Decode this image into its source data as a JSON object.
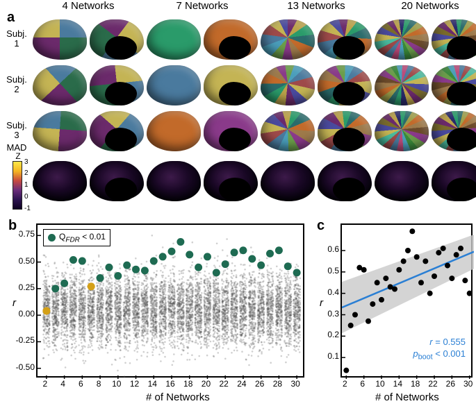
{
  "panel_a": {
    "letter": "a",
    "col_headers": [
      "4 Networks",
      "7 Networks",
      "13 Networks",
      "20 Networks"
    ],
    "row_labels": [
      "Subj.\n1",
      "Subj.\n2",
      "Subj.\n3",
      "MAD"
    ],
    "colorbar": {
      "title": "Z",
      "ticks": [
        "-1",
        "0",
        "1",
        "2",
        "3"
      ]
    },
    "brain_palettes": {
      "n4": [
        "#4a7a9e",
        "#c4b454",
        "#6b2a6b",
        "#2a6b4a"
      ],
      "n7": [
        "#4a7a9e",
        "#c4b454",
        "#6b2a6b",
        "#2a9b6a",
        "#c26a2a",
        "#8a3a8a",
        "#4a9ebb"
      ],
      "n13": [
        "#4a7a9e",
        "#c4b454",
        "#6b2a6b",
        "#2a9b6a",
        "#c26a2a",
        "#8a3a8a",
        "#4a9ebb",
        "#9e4a4a",
        "#4a4a9e",
        "#bba24a",
        "#2a6b6b",
        "#9e7a4a",
        "#6b9e4a"
      ],
      "n20": [
        "#4a7a9e",
        "#c4b454",
        "#6b2a6b",
        "#2a9b6a",
        "#c26a2a",
        "#8a3a8a",
        "#4a9ebb",
        "#9e4a4a",
        "#4a4a9e",
        "#bba24a",
        "#2a6b6b",
        "#9e7a4a",
        "#6b9e4a",
        "#bb4a7a",
        "#4abb9e",
        "#7a6b2a",
        "#2a2a6b",
        "#9e9e4a",
        "#6b4a2a",
        "#3a8a3a"
      ]
    }
  },
  "panel_b": {
    "letter": "b",
    "xlabel": "# of Networks",
    "ylabel": "r",
    "xlim": [
      1,
      31
    ],
    "ylim": [
      -0.6,
      0.85
    ],
    "xticks": [
      2,
      4,
      6,
      8,
      10,
      12,
      14,
      16,
      18,
      20,
      22,
      24,
      26,
      28,
      30
    ],
    "yticks": [
      -0.5,
      -0.25,
      0.0,
      0.25,
      0.5,
      0.75
    ],
    "legend": {
      "label_html": "Q<sub><i>FDR</i></sub> < 0.01",
      "marker_color": "#1e6b52",
      "marker_size": 11
    },
    "sig_points": [
      {
        "x": 2,
        "y": 0.04,
        "c": "#d4a017"
      },
      {
        "x": 3,
        "y": 0.25,
        "c": "#1e6b52"
      },
      {
        "x": 4,
        "y": 0.3,
        "c": "#1e6b52"
      },
      {
        "x": 5,
        "y": 0.52,
        "c": "#1e6b52"
      },
      {
        "x": 6,
        "y": 0.51,
        "c": "#1e6b52"
      },
      {
        "x": 7,
        "y": 0.27,
        "c": "#d4a017"
      },
      {
        "x": 8,
        "y": 0.35,
        "c": "#1e6b52"
      },
      {
        "x": 9,
        "y": 0.45,
        "c": "#1e6b52"
      },
      {
        "x": 10,
        "y": 0.37,
        "c": "#1e6b52"
      },
      {
        "x": 11,
        "y": 0.47,
        "c": "#1e6b52"
      },
      {
        "x": 12,
        "y": 0.43,
        "c": "#1e6b52"
      },
      {
        "x": 13,
        "y": 0.42,
        "c": "#1e6b52"
      },
      {
        "x": 14,
        "y": 0.51,
        "c": "#1e6b52"
      },
      {
        "x": 15,
        "y": 0.55,
        "c": "#1e6b52"
      },
      {
        "x": 16,
        "y": 0.6,
        "c": "#1e6b52"
      },
      {
        "x": 17,
        "y": 0.69,
        "c": "#1e6b52"
      },
      {
        "x": 18,
        "y": 0.57,
        "c": "#1e6b52"
      },
      {
        "x": 19,
        "y": 0.45,
        "c": "#1e6b52"
      },
      {
        "x": 20,
        "y": 0.55,
        "c": "#1e6b52"
      },
      {
        "x": 21,
        "y": 0.4,
        "c": "#1e6b52"
      },
      {
        "x": 22,
        "y": 0.48,
        "c": "#1e6b52"
      },
      {
        "x": 23,
        "y": 0.59,
        "c": "#1e6b52"
      },
      {
        "x": 24,
        "y": 0.61,
        "c": "#1e6b52"
      },
      {
        "x": 25,
        "y": 0.53,
        "c": "#1e6b52"
      },
      {
        "x": 26,
        "y": 0.47,
        "c": "#1e6b52"
      },
      {
        "x": 27,
        "y": 0.58,
        "c": "#1e6b52"
      },
      {
        "x": 28,
        "y": 0.61,
        "c": "#1e6b52"
      },
      {
        "x": 29,
        "y": 0.46,
        "c": "#1e6b52"
      },
      {
        "x": 30,
        "y": 0.4,
        "c": "#1e6b52"
      }
    ],
    "jitter": {
      "n_per_x": 300,
      "color": "#555555",
      "size": 1.3,
      "alpha": 0.28,
      "spread": 0.38,
      "y_sd": 0.17,
      "y_mean": 0.05
    }
  },
  "panel_c": {
    "letter": "c",
    "xlabel": "# of Networks",
    "ylabel": "r",
    "xlim": [
      1,
      31
    ],
    "ylim": [
      0.0,
      0.72
    ],
    "xticks": [
      2,
      6,
      10,
      14,
      18,
      22,
      26,
      30
    ],
    "yticks": [
      0.1,
      0.2,
      0.3,
      0.4,
      0.5,
      0.6
    ],
    "line": {
      "slope": 0.0087,
      "intercept": 0.325,
      "color": "#2a7fd4",
      "ci_color": "#c9c9c9"
    },
    "points": [
      {
        "x": 2,
        "y": 0.04
      },
      {
        "x": 3,
        "y": 0.25
      },
      {
        "x": 4,
        "y": 0.3
      },
      {
        "x": 5,
        "y": 0.52
      },
      {
        "x": 6,
        "y": 0.51
      },
      {
        "x": 7,
        "y": 0.27
      },
      {
        "x": 8,
        "y": 0.35
      },
      {
        "x": 9,
        "y": 0.45
      },
      {
        "x": 10,
        "y": 0.37
      },
      {
        "x": 11,
        "y": 0.47
      },
      {
        "x": 12,
        "y": 0.43
      },
      {
        "x": 13,
        "y": 0.42
      },
      {
        "x": 14,
        "y": 0.51
      },
      {
        "x": 15,
        "y": 0.55
      },
      {
        "x": 16,
        "y": 0.6
      },
      {
        "x": 17,
        "y": 0.69
      },
      {
        "x": 18,
        "y": 0.57
      },
      {
        "x": 19,
        "y": 0.45
      },
      {
        "x": 20,
        "y": 0.55
      },
      {
        "x": 21,
        "y": 0.4
      },
      {
        "x": 22,
        "y": 0.48
      },
      {
        "x": 23,
        "y": 0.59
      },
      {
        "x": 24,
        "y": 0.61
      },
      {
        "x": 25,
        "y": 0.53
      },
      {
        "x": 26,
        "y": 0.47
      },
      {
        "x": 27,
        "y": 0.58
      },
      {
        "x": 28,
        "y": 0.61
      },
      {
        "x": 29,
        "y": 0.46
      },
      {
        "x": 30,
        "y": 0.4
      }
    ],
    "annot": {
      "r_html": "<i>r</i>  = 0.555",
      "p_html": "<i>p</i><sub>boot</sub> < 0.001",
      "color": "#2a7fd4"
    }
  }
}
